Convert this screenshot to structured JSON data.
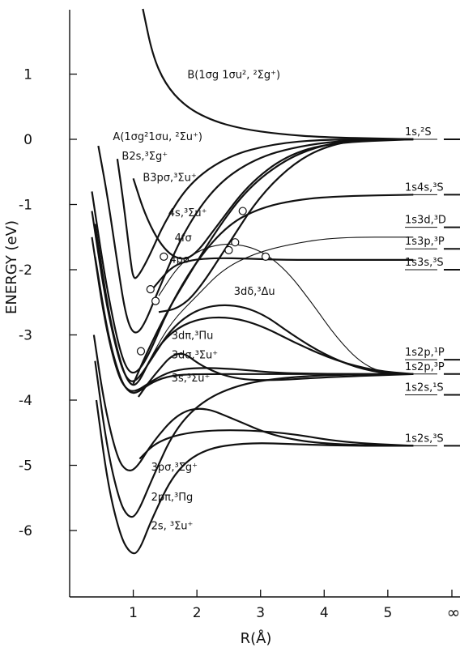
{
  "chart_data": {
    "type": "line",
    "title": "",
    "xlabel": "R(Å)",
    "ylabel": "ENERGY (eV)",
    "xlim": [
      0,
      5.6
    ],
    "ylim": [
      -7,
      2
    ],
    "x_ticks": [
      1,
      2,
      3,
      4,
      5
    ],
    "x_tick_labels": [
      "1",
      "2",
      "3",
      "4",
      "5"
    ],
    "x_infinity_label": "∞",
    "y_ticks": [
      1,
      0,
      -1,
      -2,
      -3,
      -4,
      -5,
      -6
    ],
    "y_tick_labels": [
      "1",
      "0",
      "-1",
      "-2",
      "-3",
      "-4",
      "-5",
      "-6"
    ],
    "grid": false,
    "curve_labels": [
      {
        "text": "B(1σg 1σu², ²Σg⁺)",
        "x": 1.85,
        "y": 1.0
      },
      {
        "text": "A(1σg²1σu, ²Σu⁺)",
        "x": 0.68,
        "y": 0.05
      },
      {
        "text": "B2s,³Σg⁺",
        "x": 0.82,
        "y": -0.25
      },
      {
        "text": "B3pσ,³Σu⁺",
        "x": 1.15,
        "y": -0.58
      },
      {
        "text": "4s,³Σu⁺",
        "x": 1.55,
        "y": -1.12
      },
      {
        "text": "4fσ",
        "x": 1.65,
        "y": -1.5
      },
      {
        "text": "4pσ",
        "x": 1.57,
        "y": -1.83
      },
      {
        "text": "3dδ,³Δu",
        "x": 2.58,
        "y": -2.32
      },
      {
        "text": "3dπ,³Πu",
        "x": 1.6,
        "y": -3.0
      },
      {
        "text": "3dσ,³Σu⁺",
        "x": 1.6,
        "y": -3.3
      },
      {
        "text": "3s,³Σu⁺",
        "x": 1.6,
        "y": -3.65
      },
      {
        "text": "3pσ,³Σg⁺",
        "x": 1.28,
        "y": -5.02
      },
      {
        "text": "2pπ,³Πg",
        "x": 1.28,
        "y": -5.48
      },
      {
        "text": "2s, ³Σu⁺",
        "x": 1.28,
        "y": -5.92
      }
    ],
    "asymptote_labels": [
      {
        "text": "1s,²S",
        "y": 0.0
      },
      {
        "text": "1s4s,³S",
        "y": -0.85
      },
      {
        "text": "1s3d,³D",
        "y": -1.35
      },
      {
        "text": "1s3p,³P",
        "y": -1.68
      },
      {
        "text": "1s3s,³S",
        "y": -2.0
      },
      {
        "text": "1s2p,¹P",
        "y": -3.38
      },
      {
        "text": "1s2p,³P",
        "y": -3.6
      },
      {
        "text": "1s2s,¹S",
        "y": -3.92
      },
      {
        "text": "1s2s,³S",
        "y": -4.7
      }
    ],
    "series": [
      {
        "values": [
          [
            1.15,
            2.0
          ],
          [
            1.3,
            1.3
          ],
          [
            1.5,
            0.85
          ],
          [
            1.8,
            0.52
          ],
          [
            2.2,
            0.3
          ],
          [
            2.7,
            0.16
          ],
          [
            3.3,
            0.08
          ],
          [
            4.0,
            0.03
          ],
          [
            5.0,
            0.01
          ],
          [
            5.4,
            0.0
          ]
        ]
      },
      {
        "values": [
          [
            0.45,
            -0.1
          ],
          [
            0.6,
            -0.9
          ],
          [
            0.75,
            -1.9
          ],
          [
            0.88,
            -2.7
          ],
          [
            1.0,
            -3.0
          ],
          [
            1.15,
            -2.9
          ],
          [
            1.4,
            -2.3
          ],
          [
            1.8,
            -1.4
          ],
          [
            2.3,
            -0.7
          ],
          [
            2.9,
            -0.3
          ],
          [
            3.6,
            -0.1
          ],
          [
            4.5,
            0.0
          ],
          [
            5.4,
            0.0
          ]
        ]
      },
      {
        "values": [
          [
            0.75,
            -0.3
          ],
          [
            0.85,
            -1.0
          ],
          [
            0.95,
            -1.8
          ],
          [
            1.0,
            -2.15
          ],
          [
            1.08,
            -2.1
          ],
          [
            1.25,
            -1.8
          ],
          [
            1.5,
            -1.25
          ],
          [
            1.9,
            -0.65
          ],
          [
            2.5,
            -0.25
          ],
          [
            3.2,
            -0.07
          ],
          [
            4.0,
            0.0
          ],
          [
            5.4,
            0.0
          ]
        ]
      },
      {
        "values": [
          [
            1.0,
            -0.6
          ],
          [
            1.2,
            -1.2
          ],
          [
            1.45,
            -1.65
          ],
          [
            1.7,
            -1.85
          ],
          [
            1.95,
            -1.8
          ],
          [
            2.3,
            -1.35
          ],
          [
            2.8,
            -0.7
          ],
          [
            3.4,
            -0.25
          ],
          [
            4.1,
            -0.05
          ],
          [
            5.4,
            0.0
          ]
        ]
      },
      {
        "values": [
          [
            0.35,
            -0.8
          ],
          [
            0.55,
            -2.1
          ],
          [
            0.75,
            -3.1
          ],
          [
            0.9,
            -3.55
          ],
          [
            1.05,
            -3.6
          ],
          [
            1.25,
            -3.3
          ],
          [
            1.55,
            -2.6
          ],
          [
            2.0,
            -1.85
          ],
          [
            2.5,
            -1.3
          ],
          [
            3.0,
            -1.05
          ],
          [
            3.6,
            -0.92
          ],
          [
            4.3,
            -0.87
          ],
          [
            5.4,
            -0.85
          ]
        ]
      },
      {
        "values": [
          [
            1.1,
            -3.7
          ],
          [
            1.3,
            -3.3
          ],
          [
            1.6,
            -2.8
          ],
          [
            2.0,
            -2.4
          ],
          [
            2.4,
            -2.0
          ],
          [
            2.9,
            -1.75
          ],
          [
            3.5,
            -1.6
          ],
          [
            4.2,
            -1.5
          ],
          [
            5.4,
            -1.5
          ]
        ]
      },
      {
        "values": [
          [
            1.4,
            -2.4
          ],
          [
            1.7,
            -1.95
          ],
          [
            2.0,
            -1.72
          ],
          [
            2.3,
            -1.62
          ],
          [
            2.6,
            -1.6
          ],
          [
            3.0,
            -1.7
          ],
          [
            3.4,
            -2.0
          ],
          [
            3.8,
            -2.5
          ],
          [
            4.2,
            -3.05
          ],
          [
            4.6,
            -3.45
          ],
          [
            5.0,
            -3.6
          ],
          [
            5.4,
            -3.6
          ]
        ]
      },
      {
        "values": [
          [
            1.3,
            -2.3
          ],
          [
            1.6,
            -1.95
          ],
          [
            1.9,
            -1.85
          ],
          [
            2.3,
            -1.82
          ],
          [
            2.8,
            -1.83
          ],
          [
            3.4,
            -1.85
          ],
          [
            4.2,
            -1.85
          ],
          [
            5.4,
            -1.85
          ]
        ]
      },
      {
        "values": [
          [
            1.0,
            -3.75
          ],
          [
            1.2,
            -3.3
          ],
          [
            1.5,
            -2.7
          ],
          [
            1.8,
            -2.2
          ],
          [
            2.3,
            -1.4
          ],
          [
            2.8,
            -0.75
          ],
          [
            3.4,
            -0.3
          ],
          [
            4.0,
            -0.08
          ],
          [
            4.6,
            0.0
          ],
          [
            5.4,
            0.0
          ]
        ]
      },
      {
        "values": [
          [
            1.4,
            -2.65
          ],
          [
            1.7,
            -2.6
          ],
          [
            2.0,
            -2.35
          ],
          [
            2.5,
            -1.6
          ],
          [
            3.0,
            -0.85
          ],
          [
            3.6,
            -0.3
          ],
          [
            4.2,
            -0.05
          ],
          [
            4.8,
            0.0
          ],
          [
            5.4,
            0.0
          ]
        ]
      },
      {
        "values": [
          [
            0.35,
            -1.1
          ],
          [
            0.55,
            -2.4
          ],
          [
            0.75,
            -3.3
          ],
          [
            0.9,
            -3.7
          ],
          [
            1.05,
            -3.72
          ],
          [
            1.3,
            -3.35
          ],
          [
            1.6,
            -2.9
          ],
          [
            2.0,
            -2.6
          ],
          [
            2.5,
            -2.52
          ],
          [
            3.0,
            -2.65
          ],
          [
            3.5,
            -3.0
          ],
          [
            4.0,
            -3.3
          ],
          [
            4.5,
            -3.5
          ],
          [
            5.0,
            -3.6
          ],
          [
            5.4,
            -3.6
          ]
        ]
      },
      {
        "values": [
          [
            0.4,
            -1.3
          ],
          [
            0.6,
            -2.6
          ],
          [
            0.8,
            -3.45
          ],
          [
            0.95,
            -3.78
          ],
          [
            1.08,
            -3.75
          ],
          [
            1.3,
            -3.3
          ],
          [
            1.6,
            -2.95
          ],
          [
            2.0,
            -2.75
          ],
          [
            2.5,
            -2.72
          ],
          [
            3.0,
            -2.85
          ],
          [
            3.6,
            -3.15
          ],
          [
            4.2,
            -3.4
          ],
          [
            4.8,
            -3.55
          ],
          [
            5.4,
            -3.6
          ]
        ]
      },
      {
        "values": [
          [
            0.35,
            -1.5
          ],
          [
            0.55,
            -2.8
          ],
          [
            0.75,
            -3.6
          ],
          [
            0.9,
            -3.85
          ],
          [
            1.05,
            -3.87
          ],
          [
            1.3,
            -3.7
          ],
          [
            1.6,
            -3.55
          ],
          [
            2.0,
            -3.5
          ],
          [
            2.6,
            -3.52
          ],
          [
            3.2,
            -3.58
          ],
          [
            4.0,
            -3.6
          ],
          [
            5.4,
            -3.6
          ]
        ]
      },
      {
        "values": [
          [
            0.4,
            -1.8
          ],
          [
            0.6,
            -3.0
          ],
          [
            0.8,
            -3.7
          ],
          [
            0.95,
            -3.9
          ],
          [
            1.08,
            -3.88
          ],
          [
            1.3,
            -3.72
          ],
          [
            1.6,
            -3.62
          ],
          [
            2.0,
            -3.6
          ],
          [
            3.0,
            -3.6
          ],
          [
            5.4,
            -3.6
          ]
        ]
      },
      {
        "values": [
          [
            1.08,
            -3.95
          ],
          [
            1.3,
            -3.65
          ],
          [
            1.7,
            -3.2
          ],
          [
            2.1,
            -3.5
          ],
          [
            2.6,
            -3.68
          ],
          [
            3.2,
            -3.7
          ],
          [
            4.0,
            -3.65
          ],
          [
            5.4,
            -3.6
          ]
        ]
      },
      {
        "values": [
          [
            0.38,
            -3.0
          ],
          [
            0.55,
            -4.1
          ],
          [
            0.75,
            -4.9
          ],
          [
            0.9,
            -5.1
          ],
          [
            1.05,
            -5.05
          ],
          [
            1.3,
            -4.65
          ],
          [
            1.7,
            -4.2
          ],
          [
            2.1,
            -4.1
          ],
          [
            2.6,
            -4.3
          ],
          [
            3.2,
            -4.55
          ],
          [
            4.0,
            -4.68
          ],
          [
            5.4,
            -4.7
          ]
        ]
      },
      {
        "values": [
          [
            1.1,
            -4.9
          ],
          [
            1.35,
            -4.65
          ],
          [
            1.8,
            -4.5
          ],
          [
            2.5,
            -4.45
          ],
          [
            3.4,
            -4.5
          ],
          [
            4.3,
            -4.65
          ],
          [
            5.4,
            -4.7
          ]
        ]
      },
      {
        "values": [
          [
            0.4,
            -3.4
          ],
          [
            0.58,
            -4.7
          ],
          [
            0.78,
            -5.55
          ],
          [
            0.92,
            -5.8
          ],
          [
            1.05,
            -5.78
          ],
          [
            1.3,
            -5.2
          ],
          [
            1.65,
            -4.45
          ],
          [
            2.1,
            -4.0
          ],
          [
            2.7,
            -3.75
          ],
          [
            3.4,
            -3.65
          ],
          [
            4.2,
            -3.61
          ],
          [
            5.4,
            -3.6
          ]
        ]
      },
      {
        "values": [
          [
            0.42,
            -4.0
          ],
          [
            0.6,
            -5.3
          ],
          [
            0.8,
            -6.1
          ],
          [
            0.95,
            -6.35
          ],
          [
            1.08,
            -6.35
          ],
          [
            1.3,
            -5.8
          ],
          [
            1.65,
            -5.1
          ],
          [
            2.1,
            -4.75
          ],
          [
            2.8,
            -4.65
          ],
          [
            3.6,
            -4.68
          ],
          [
            4.4,
            -4.7
          ],
          [
            5.4,
            -4.7
          ]
        ]
      }
    ],
    "crossing_markers": [
      {
        "x": 1.27,
        "y": -2.3
      },
      {
        "x": 1.35,
        "y": -2.48
      },
      {
        "x": 1.48,
        "y": -1.8
      },
      {
        "x": 1.12,
        "y": -3.25
      },
      {
        "x": 2.5,
        "y": -1.7
      },
      {
        "x": 2.6,
        "y": -1.58
      },
      {
        "x": 2.72,
        "y": -1.1
      },
      {
        "x": 3.08,
        "y": -1.8
      }
    ]
  }
}
